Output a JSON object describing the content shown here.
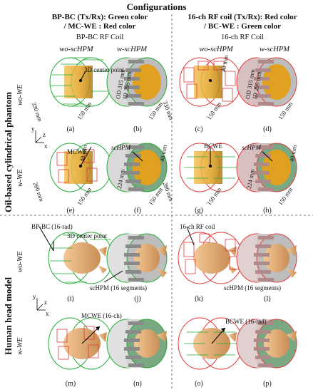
{
  "title": "Configurations",
  "left_header": {
    "line1": "BP-BC (Tx/Rx): Green color",
    "line2": "/ MC-WE : Red color",
    "coil": "BP-BC RF Coil"
  },
  "right_header": {
    "line1": "16-ch RF coil (Tx/Rx): Red color",
    "line2": "/ BC-WE : Green color",
    "coil": "16-ch RF Coil"
  },
  "col_labels": {
    "wo": "wo-scHPM",
    "w": "w-scHPM"
  },
  "side_labels": {
    "phantom": "Oil-based cylindrical phantom",
    "head": "Human head model"
  },
  "row_labels": {
    "wo": "wo-WE",
    "w": "w-WE"
  },
  "annotations": {
    "center_point": "3D center point",
    "mcwe": "MCWE",
    "bcwe": "BCWE",
    "schpm": "scHPM",
    "bpbc16": "BP-BC (16-rad)",
    "ch16coil": "16-ch RF coil",
    "schpm16": "scHPM (16 segments)",
    "mcwe16": "MCWE (16-ch)",
    "bcwe16": "BCWE (16-rad)"
  },
  "dims": {
    "d330": "330 mm",
    "d150": "150 mm",
    "d40": "40 mm",
    "od": "OD 315 mm",
    "id": "ID 295 mm",
    "d280": "280 mm",
    "d224": "224 mm"
  },
  "axes": {
    "x": "x",
    "y": "y",
    "z": "z"
  },
  "captions": [
    "(a)",
    "(b)",
    "(c)",
    "(d)",
    "(e)",
    "(f)",
    "(g)",
    "(h)",
    "(i)",
    "(j)",
    "(k)",
    "(l)",
    "(m)",
    "(n)",
    "(o)",
    "(p)"
  ],
  "colors": {
    "green": "#22aa33",
    "red": "#e23a3a",
    "gold": "#e0a020",
    "phantom_orange": "#e8b040",
    "head": "#e9b27a",
    "gray": "#8a8a8a",
    "pink": "#f4c7c7"
  }
}
